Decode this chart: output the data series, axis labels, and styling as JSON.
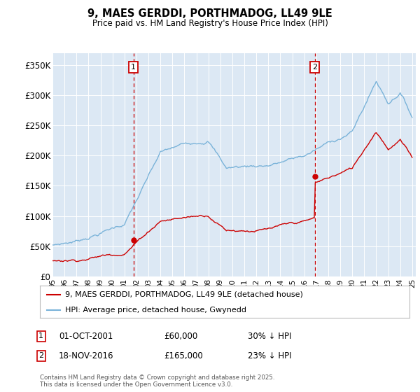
{
  "title": "9, MAES GERDDI, PORTHMADOG, LL49 9LE",
  "subtitle": "Price paid vs. HM Land Registry's House Price Index (HPI)",
  "ylim": [
    0,
    370000
  ],
  "yticks": [
    0,
    50000,
    100000,
    150000,
    200000,
    250000,
    300000,
    350000
  ],
  "ytick_labels": [
    "£0",
    "£50K",
    "£100K",
    "£150K",
    "£200K",
    "£250K",
    "£300K",
    "£350K"
  ],
  "x_start_year": 1995,
  "x_end_year": 2025,
  "hpi_color": "#7ab3d9",
  "price_color": "#cc0000",
  "marker1_date": 2001.75,
  "marker1_price": 60000,
  "marker1_label": "01-OCT-2001",
  "marker1_pct": "30% ↓ HPI",
  "marker2_date": 2016.88,
  "marker2_price": 165000,
  "marker2_label": "18-NOV-2016",
  "marker2_pct": "23% ↓ HPI",
  "legend_line1": "9, MAES GERDDI, PORTHMADOG, LL49 9LE (detached house)",
  "legend_line2": "HPI: Average price, detached house, Gwynedd",
  "footer": "Contains HM Land Registry data © Crown copyright and database right 2025.\nThis data is licensed under the Open Government Licence v3.0.",
  "plot_bg_color": "#dce8f4"
}
